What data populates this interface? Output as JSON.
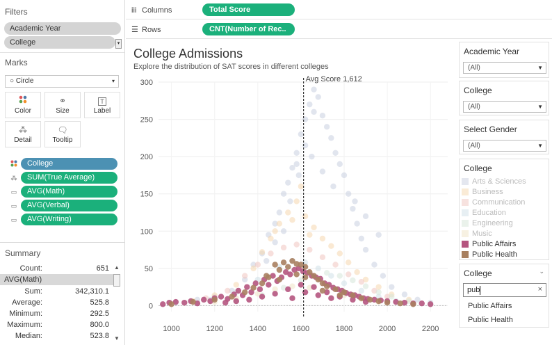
{
  "filters": {
    "title": "Filters",
    "items": [
      "Academic Year",
      "College"
    ]
  },
  "marks": {
    "title": "Marks",
    "type": "Circle",
    "buttons": [
      "Color",
      "Size",
      "Label",
      "Detail",
      "Tooltip"
    ],
    "pills": [
      {
        "label": "College",
        "style": "blue",
        "icon": "color-dots-icon"
      },
      {
        "label": "SUM(True Average)",
        "style": "teal",
        "icon": "detail-icon"
      },
      {
        "label": "AVG(Math)",
        "style": "teal",
        "icon": "tooltip-icon"
      },
      {
        "label": "AVG(Verbal)",
        "style": "teal",
        "icon": "tooltip-icon"
      },
      {
        "label": "AVG(Writing)",
        "style": "teal",
        "icon": "tooltip-icon"
      }
    ]
  },
  "summary": {
    "title": "Summary",
    "count_label": "Count:",
    "count_value": "651",
    "measure": "AVG(Math)",
    "rows": [
      {
        "k": "Sum:",
        "v": "342,310.1"
      },
      {
        "k": "Average:",
        "v": "525.8"
      },
      {
        "k": "Minimum:",
        "v": "292.5"
      },
      {
        "k": "Maximum:",
        "v": "800.0"
      },
      {
        "k": "Median:",
        "v": "523.8"
      }
    ]
  },
  "shelves": {
    "columns_label": "Columns",
    "columns_pill": "Total Score",
    "rows_label": "Rows",
    "rows_pill": "CNT(Number of Rec.."
  },
  "chart_header": {
    "title": "College Admissions",
    "subtitle": "Explore the distribution of SAT scores in different colleges",
    "ref_label": "Avg Score 1,612"
  },
  "right": {
    "academic_year": {
      "title": "Academic Year",
      "value": "(All)"
    },
    "college": {
      "title": "College",
      "value": "(All)"
    },
    "gender": {
      "title": "Select Gender",
      "value": "(All)"
    },
    "legend": {
      "title": "College",
      "items": [
        {
          "label": "Arts & Sciences",
          "color": "#c9cfe0",
          "dim": true
        },
        {
          "label": "Business",
          "color": "#f5d7ae",
          "dim": true
        },
        {
          "label": "Communication",
          "color": "#f0c5c0",
          "dim": true
        },
        {
          "label": "Education",
          "color": "#cfe0e8",
          "dim": true
        },
        {
          "label": "Engineering",
          "color": "#d5e6d8",
          "dim": true
        },
        {
          "label": "Music",
          "color": "#efe3c6",
          "dim": true
        },
        {
          "label": "Public Affairs",
          "color": "#b5557f",
          "dim": false
        },
        {
          "label": "Public Health",
          "color": "#a88060",
          "dim": false
        }
      ]
    },
    "search": {
      "title": "College",
      "query": "pub",
      "results": [
        "Public Affairs",
        "Public Health"
      ]
    }
  },
  "chart_data": {
    "type": "scatter",
    "title": "College Admissions",
    "subtitle": "Explore the distribution of SAT scores in different colleges",
    "xlabel": "",
    "ylabel": "",
    "xlim": [
      940,
      2280
    ],
    "ylim": [
      -8,
      300
    ],
    "xticks": [
      1000,
      1200,
      1400,
      1600,
      1800,
      2000,
      2200
    ],
    "yticks": [
      0,
      50,
      100,
      150,
      200,
      250,
      300
    ],
    "reference_line": {
      "x": 1612,
      "label": "Avg Score 1,612"
    },
    "grid": true,
    "series": [
      {
        "name": "Arts & Sciences",
        "color": "#c9cfe0",
        "points": [
          [
            1020,
            4
          ],
          [
            1120,
            8
          ],
          [
            1200,
            12
          ],
          [
            1280,
            20
          ],
          [
            1340,
            35
          ],
          [
            1380,
            55
          ],
          [
            1420,
            70
          ],
          [
            1450,
            95
          ],
          [
            1480,
            110
          ],
          [
            1500,
            125
          ],
          [
            1520,
            150
          ],
          [
            1540,
            165
          ],
          [
            1560,
            185
          ],
          [
            1580,
            205
          ],
          [
            1600,
            230
          ],
          [
            1620,
            250
          ],
          [
            1640,
            270
          ],
          [
            1660,
            290
          ],
          [
            1680,
            280
          ],
          [
            1700,
            255
          ],
          [
            1720,
            240
          ],
          [
            1740,
            225
          ],
          [
            1760,
            205
          ],
          [
            1780,
            190
          ],
          [
            1800,
            175
          ],
          [
            1820,
            150
          ],
          [
            1840,
            130
          ],
          [
            1860,
            110
          ],
          [
            1880,
            90
          ],
          [
            1900,
            75
          ],
          [
            1940,
            55
          ],
          [
            1980,
            40
          ],
          [
            2020,
            25
          ],
          [
            2080,
            15
          ],
          [
            2140,
            8
          ],
          [
            2200,
            4
          ],
          [
            1550,
            140
          ],
          [
            1590,
            175
          ],
          [
            1650,
            200
          ],
          [
            1700,
            180
          ],
          [
            1750,
            160
          ],
          [
            1440,
            60
          ],
          [
            1480,
            85
          ],
          [
            1850,
            140
          ],
          [
            1900,
            120
          ],
          [
            1960,
            95
          ],
          [
            1660,
            260
          ],
          [
            1620,
            215
          ],
          [
            1580,
            190
          ],
          [
            1520,
            100
          ]
        ]
      },
      {
        "name": "Business",
        "color": "#f5d7ae",
        "points": [
          [
            1100,
            6
          ],
          [
            1200,
            14
          ],
          [
            1300,
            28
          ],
          [
            1380,
            50
          ],
          [
            1420,
            72
          ],
          [
            1460,
            90
          ],
          [
            1500,
            110
          ],
          [
            1540,
            125
          ],
          [
            1580,
            140
          ],
          [
            1600,
            160
          ],
          [
            1620,
            120
          ],
          [
            1660,
            105
          ],
          [
            1700,
            90
          ],
          [
            1740,
            80
          ],
          [
            1780,
            70
          ],
          [
            1820,
            58
          ],
          [
            1860,
            45
          ],
          [
            1900,
            35
          ],
          [
            1960,
            25
          ],
          [
            2020,
            15
          ],
          [
            2100,
            8
          ],
          [
            1480,
            100
          ],
          [
            1560,
            115
          ],
          [
            1640,
            95
          ]
        ]
      },
      {
        "name": "Communication",
        "color": "#f0c5c0",
        "points": [
          [
            1160,
            10
          ],
          [
            1260,
            20
          ],
          [
            1340,
            40
          ],
          [
            1400,
            55
          ],
          [
            1460,
            70
          ],
          [
            1520,
            78
          ],
          [
            1580,
            82
          ],
          [
            1640,
            75
          ],
          [
            1700,
            65
          ],
          [
            1760,
            55
          ],
          [
            1820,
            42
          ],
          [
            1880,
            32
          ],
          [
            1940,
            20
          ],
          [
            2000,
            12
          ]
        ]
      },
      {
        "name": "Education",
        "color": "#cfe0e8",
        "points": [
          [
            1180,
            8
          ],
          [
            1300,
            18
          ],
          [
            1400,
            35
          ],
          [
            1500,
            52
          ],
          [
            1560,
            60
          ],
          [
            1620,
            58
          ],
          [
            1680,
            50
          ],
          [
            1740,
            40
          ],
          [
            1800,
            30
          ],
          [
            1880,
            20
          ],
          [
            1960,
            12
          ],
          [
            2040,
            6
          ]
        ]
      },
      {
        "name": "Engineering",
        "color": "#d5e6d8",
        "points": [
          [
            1300,
            6
          ],
          [
            1420,
            14
          ],
          [
            1520,
            24
          ],
          [
            1600,
            34
          ],
          [
            1660,
            40
          ],
          [
            1720,
            44
          ],
          [
            1780,
            40
          ],
          [
            1840,
            34
          ],
          [
            1900,
            26
          ],
          [
            1960,
            18
          ],
          [
            2020,
            12
          ],
          [
            2100,
            6
          ],
          [
            2200,
            2
          ]
        ]
      },
      {
        "name": "Music",
        "color": "#efe3c6",
        "points": [
          [
            1200,
            5
          ],
          [
            1300,
            10
          ],
          [
            1400,
            16
          ],
          [
            1480,
            22
          ],
          [
            1560,
            26
          ],
          [
            1640,
            24
          ],
          [
            1720,
            20
          ],
          [
            1800,
            14
          ],
          [
            1880,
            9
          ],
          [
            1960,
            5
          ]
        ]
      },
      {
        "name": "Public Affairs",
        "color": "#b5557f",
        "points": [
          [
            960,
            2
          ],
          [
            990,
            4
          ],
          [
            1020,
            5
          ],
          [
            1060,
            4
          ],
          [
            1090,
            6
          ],
          [
            1120,
            3
          ],
          [
            1150,
            8
          ],
          [
            1180,
            6
          ],
          [
            1200,
            10
          ],
          [
            1230,
            12
          ],
          [
            1260,
            9
          ],
          [
            1290,
            15
          ],
          [
            1310,
            20
          ],
          [
            1330,
            14
          ],
          [
            1350,
            25
          ],
          [
            1370,
            18
          ],
          [
            1390,
            30
          ],
          [
            1410,
            22
          ],
          [
            1430,
            35
          ],
          [
            1450,
            28
          ],
          [
            1470,
            40
          ],
          [
            1490,
            33
          ],
          [
            1510,
            38
          ],
          [
            1530,
            45
          ],
          [
            1550,
            42
          ],
          [
            1570,
            48
          ],
          [
            1590,
            50
          ],
          [
            1610,
            46
          ],
          [
            1630,
            44
          ],
          [
            1650,
            40
          ],
          [
            1670,
            38
          ],
          [
            1690,
            36
          ],
          [
            1710,
            30
          ],
          [
            1730,
            28
          ],
          [
            1750,
            24
          ],
          [
            1770,
            22
          ],
          [
            1790,
            20
          ],
          [
            1810,
            17
          ],
          [
            1830,
            15
          ],
          [
            1850,
            14
          ],
          [
            1870,
            12
          ],
          [
            1890,
            10
          ],
          [
            1910,
            9
          ],
          [
            1940,
            8
          ],
          [
            1970,
            7
          ],
          [
            2000,
            6
          ],
          [
            2040,
            5
          ],
          [
            2080,
            4
          ],
          [
            2120,
            3
          ],
          [
            2160,
            3
          ],
          [
            2200,
            2
          ],
          [
            1420,
            12
          ],
          [
            1480,
            16
          ],
          [
            1540,
            22
          ],
          [
            1600,
            28
          ],
          [
            1660,
            25
          ],
          [
            1720,
            18
          ],
          [
            1780,
            12
          ],
          [
            1840,
            8
          ],
          [
            1900,
            5
          ],
          [
            1300,
            6
          ],
          [
            1360,
            8
          ],
          [
            1250,
            4
          ],
          [
            1560,
            10
          ],
          [
            1620,
            18
          ],
          [
            1680,
            14
          ],
          [
            1740,
            10
          ]
        ]
      },
      {
        "name": "Public Health",
        "color": "#a88060",
        "points": [
          [
            1000,
            2
          ],
          [
            1100,
            5
          ],
          [
            1200,
            8
          ],
          [
            1280,
            12
          ],
          [
            1340,
            18
          ],
          [
            1380,
            24
          ],
          [
            1420,
            30
          ],
          [
            1450,
            38
          ],
          [
            1480,
            55
          ],
          [
            1500,
            48
          ],
          [
            1520,
            58
          ],
          [
            1540,
            52
          ],
          [
            1560,
            60
          ],
          [
            1580,
            56
          ],
          [
            1600,
            55
          ],
          [
            1620,
            52
          ],
          [
            1640,
            45
          ],
          [
            1660,
            40
          ],
          [
            1680,
            35
          ],
          [
            1700,
            30
          ],
          [
            1720,
            26
          ],
          [
            1760,
            22
          ],
          [
            1800,
            18
          ],
          [
            1840,
            14
          ],
          [
            1880,
            10
          ],
          [
            1920,
            8
          ],
          [
            1960,
            6
          ],
          [
            2000,
            4
          ],
          [
            2060,
            3
          ],
          [
            2120,
            2
          ],
          [
            1440,
            40
          ],
          [
            1500,
            35
          ],
          [
            1580,
            42
          ],
          [
            1620,
            38
          ],
          [
            1700,
            20
          ],
          [
            1780,
            14
          ]
        ]
      }
    ]
  }
}
